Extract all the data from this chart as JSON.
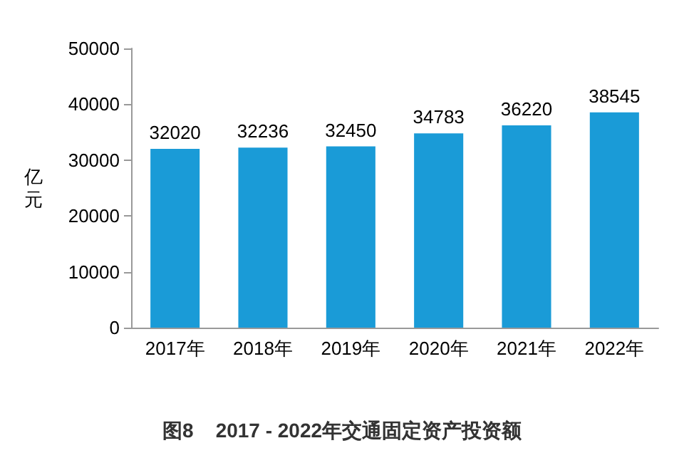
{
  "chart_data": {
    "type": "bar",
    "title": "图8    2017 - 2022年交通固定资产投资额",
    "ylabel": "亿元",
    "categories": [
      "2017年",
      "2018年",
      "2019年",
      "2020年",
      "2021年",
      "2022年"
    ],
    "values": [
      32020,
      32236,
      32450,
      34783,
      36220,
      38545
    ],
    "color": "#1a9bd7",
    "ylim": [
      0,
      50000
    ],
    "yticks": [
      0,
      10000,
      20000,
      30000,
      40000,
      50000
    ],
    "grid": false,
    "data_labels": true
  }
}
